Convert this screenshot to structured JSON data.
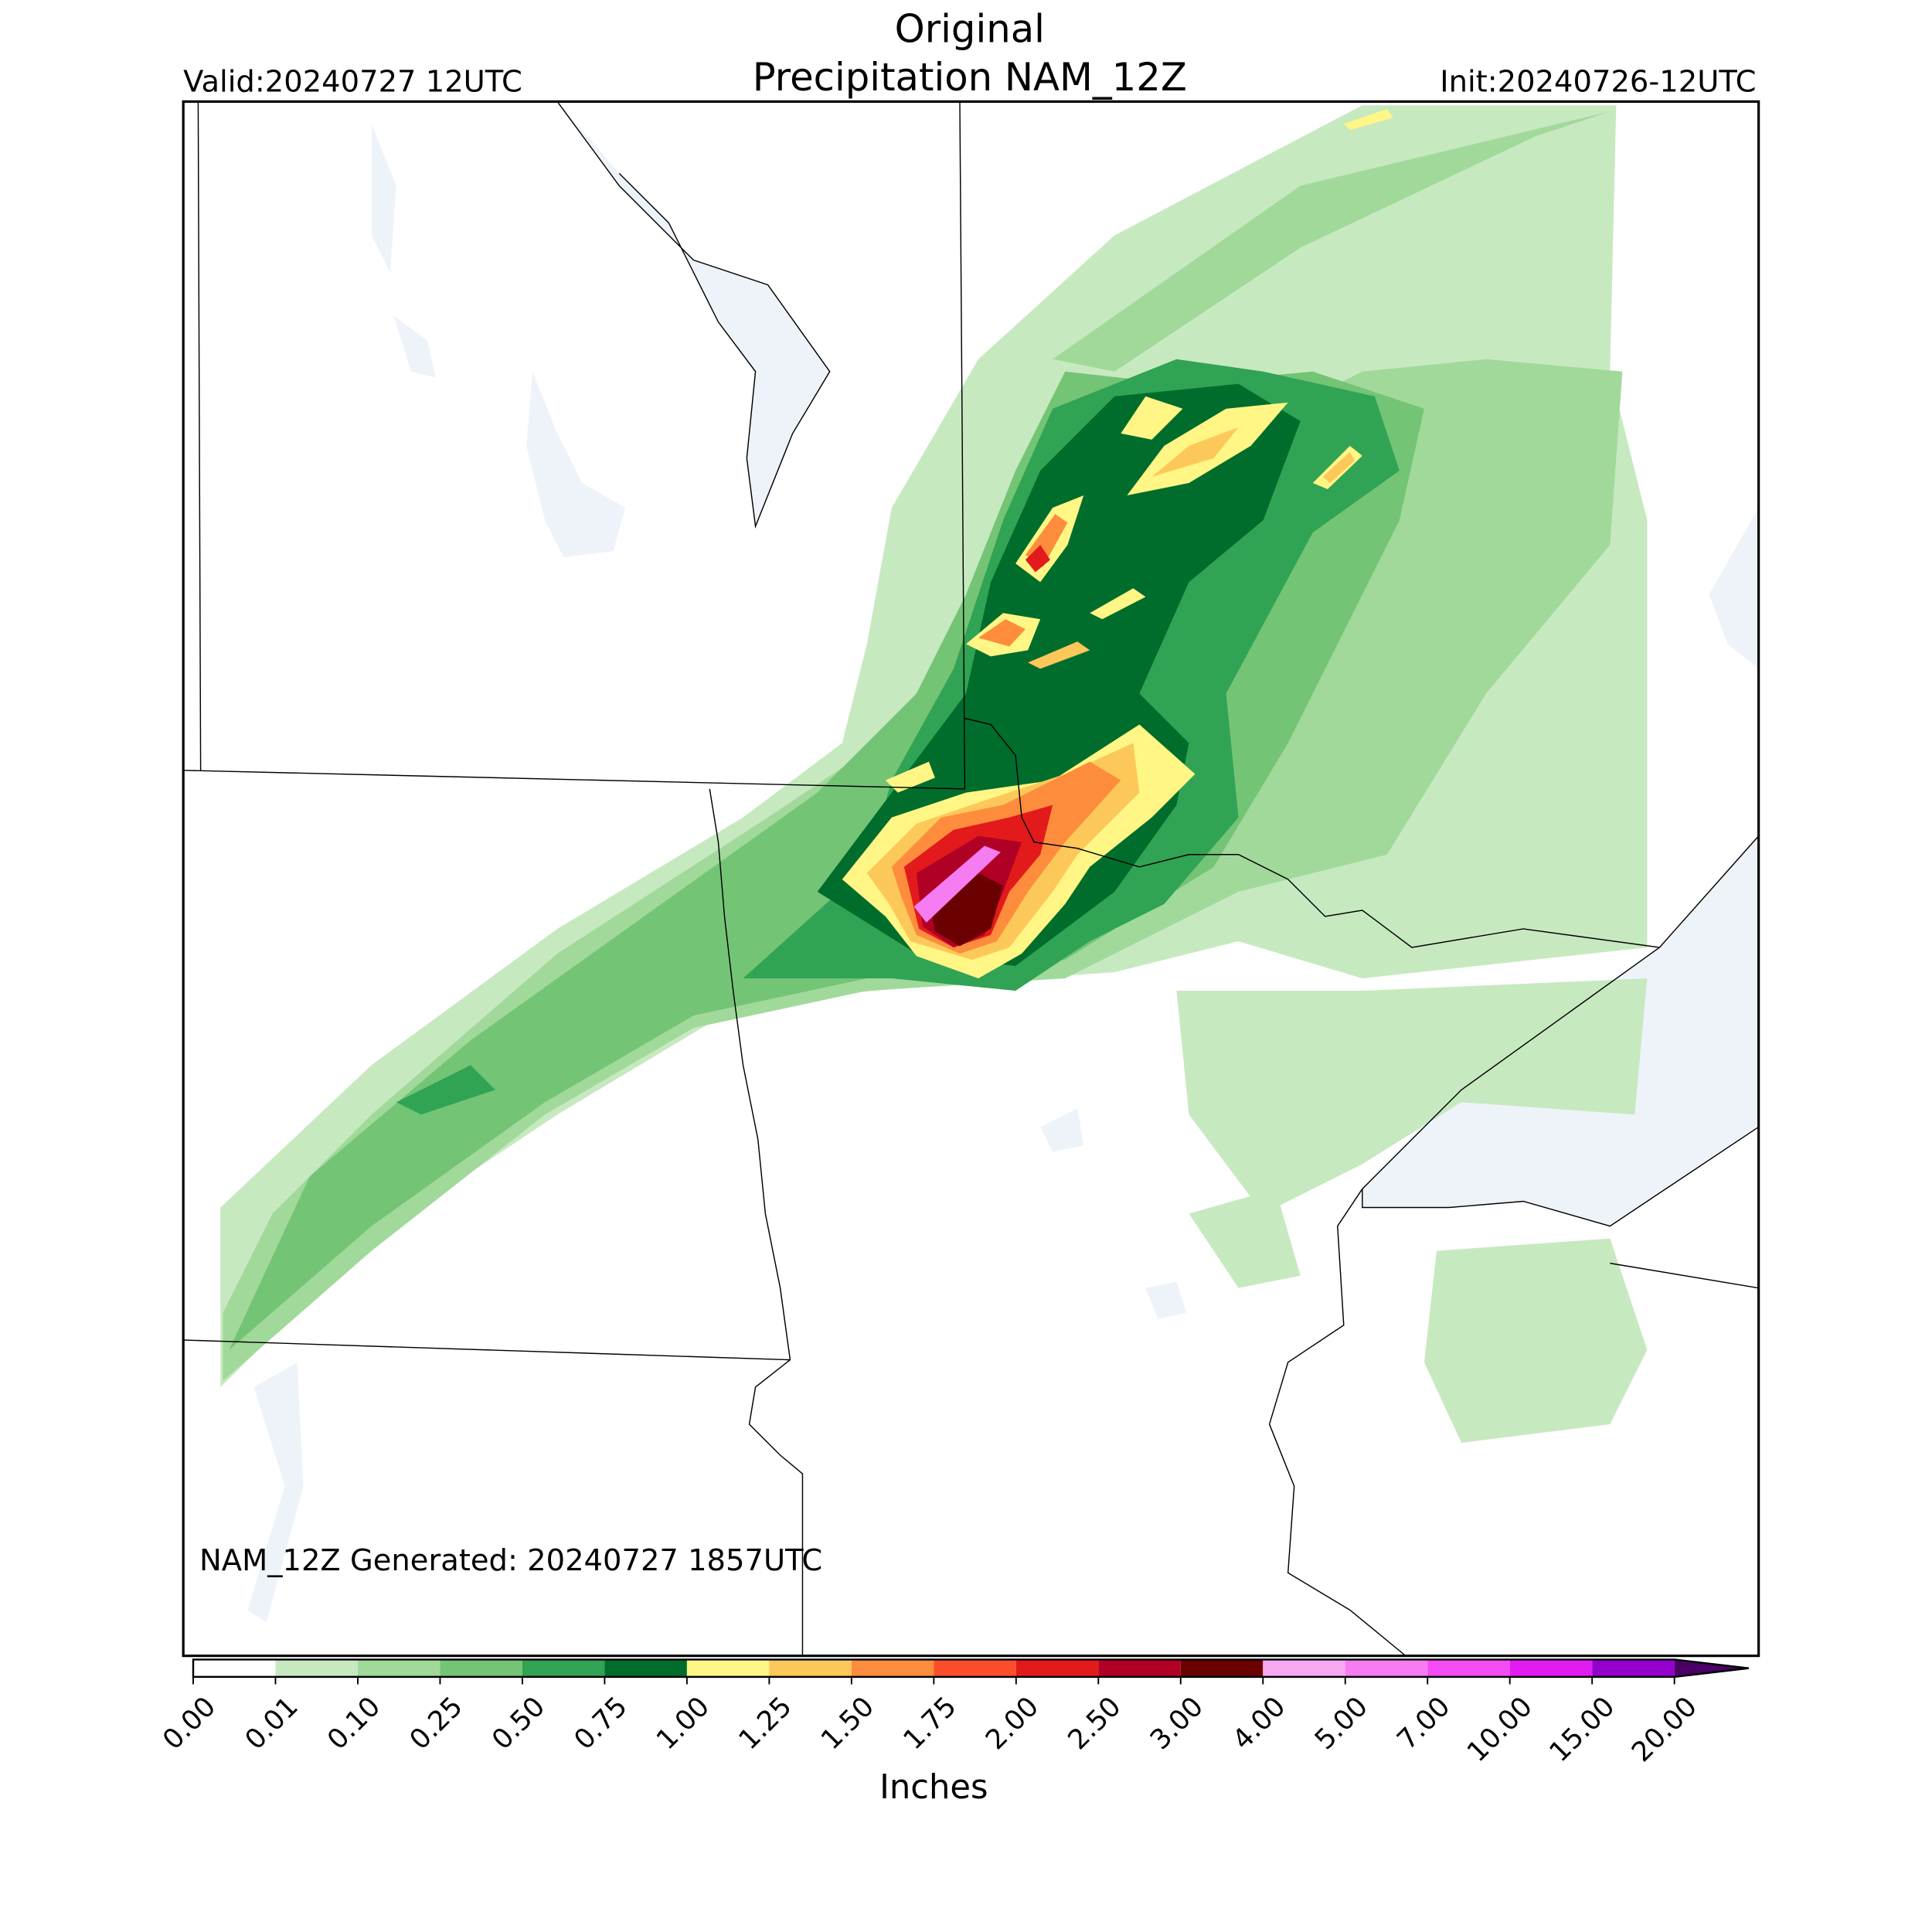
{
  "header": {
    "title": "Original",
    "subtitle": "Precipitation NAM_12Z",
    "valid": "Valid:20240727 12UTC",
    "init": "Init:20240726-12UTC"
  },
  "map": {
    "annotation": "NAM_12Z Generated: 20240727 1857UTC"
  },
  "colorbar": {
    "label": "Inches",
    "ticks": [
      {
        "value": 0,
        "label": "0.00"
      },
      {
        "value": 0.01,
        "label": "0.01"
      },
      {
        "value": 0.1,
        "label": "0.10"
      },
      {
        "value": 0.25,
        "label": "0.25"
      },
      {
        "value": 0.5,
        "label": "0.50"
      },
      {
        "value": 0.75,
        "label": "0.75"
      },
      {
        "value": 1,
        "label": "1.00"
      },
      {
        "value": 1.25,
        "label": "1.25"
      },
      {
        "value": 1.5,
        "label": "1.50"
      },
      {
        "value": 1.75,
        "label": "1.75"
      },
      {
        "value": 2,
        "label": "2.00"
      },
      {
        "value": 2.5,
        "label": "2.50"
      },
      {
        "value": 3,
        "label": "3.00"
      },
      {
        "value": 4,
        "label": "4.00"
      },
      {
        "value": 5,
        "label": "5.00"
      },
      {
        "value": 7,
        "label": "7.00"
      },
      {
        "value": 10,
        "label": "10.00"
      },
      {
        "value": 15,
        "label": "15.00"
      },
      {
        "value": 20,
        "label": "20.00"
      }
    ],
    "colors": [
      "#ffffff",
      "#c7e9c0",
      "#a1d99b",
      "#74c476",
      "#31a354",
      "#006d2c",
      "#fff685",
      "#fdc85a",
      "#fd8d3c",
      "#fc4e2a",
      "#e31a1c",
      "#b10026",
      "#6b0000",
      "#f7a8f0",
      "#f67cf2",
      "#f44cf2",
      "#e21cf0",
      "#9500cc"
    ],
    "extend_color": "#4a0066"
  }
}
